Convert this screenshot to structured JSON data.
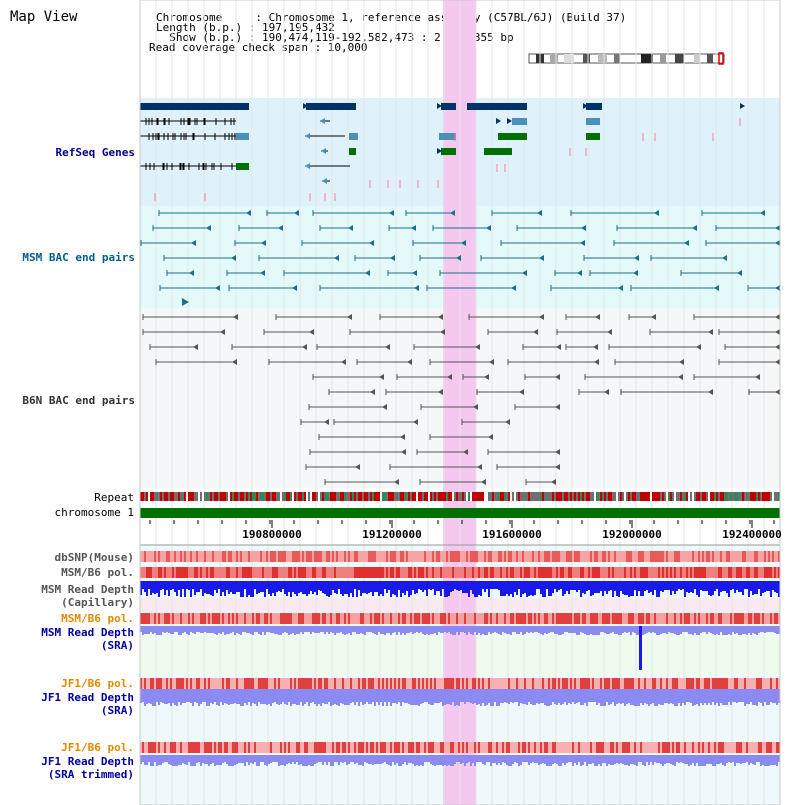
{
  "app": {
    "title": "Map View"
  },
  "info": {
    "chromosome_line": "Chromosome     : Chromosome 1, reference assembly (C57BL/6J) (Build 37)",
    "length_line": "Length (b.p.) : 197,195,432",
    "show_line": "  Show (b.p.) : 190,474,119-192,582,473 : 2,108,355 bp",
    "coverage_line": "Read coverage check span : 10,000"
  },
  "tracks": {
    "refseq": "RefSeq Genes",
    "msm_bac": "MSM BAC end pairs",
    "b6n_bac": "B6N BAC end pairs",
    "repeat": "Repeat",
    "chromosome": "chromosome 1",
    "dbsnp": "dbSNP(Mouse)",
    "msm_b6_pol_1": "MSM/B6 pol.",
    "msm_read_depth_cap_1": "MSM Read Depth",
    "msm_read_depth_cap_2": "(Capillary)",
    "msm_b6_pol_2": "MSM/B6 pol.",
    "msm_read_depth_sra_1": "MSM Read Depth",
    "msm_read_depth_sra_2": "(SRA)",
    "jf1_b6_pol_1": "JF1/B6 pol.",
    "jf1_read_depth_sra_1": "JF1 Read Depth",
    "jf1_read_depth_sra_2": "(SRA)",
    "jf1_b6_pol_2": "JF1/B6 pol.",
    "jf1_read_depth_trim_1": "JF1 Read Depth",
    "jf1_read_depth_trim_2": "(SRA trimmed)"
  },
  "axis": {
    "ticks": [
      "190800000",
      "191200000",
      "191600000",
      "192000000",
      "192400000"
    ]
  },
  "colors": {
    "refseq_label": "#00008b",
    "msm_label": "#005f8f",
    "b6n_label": "#333333",
    "orange_label": "#e08a00",
    "blue_label": "#0000a0",
    "highlight": "#f5c8f0",
    "refseq_bg": "#dff2fb",
    "msm_bg": "#e4fafa",
    "b6n_bg": "#f6f7f8",
    "chromosome_bar": "#007000"
  }
}
